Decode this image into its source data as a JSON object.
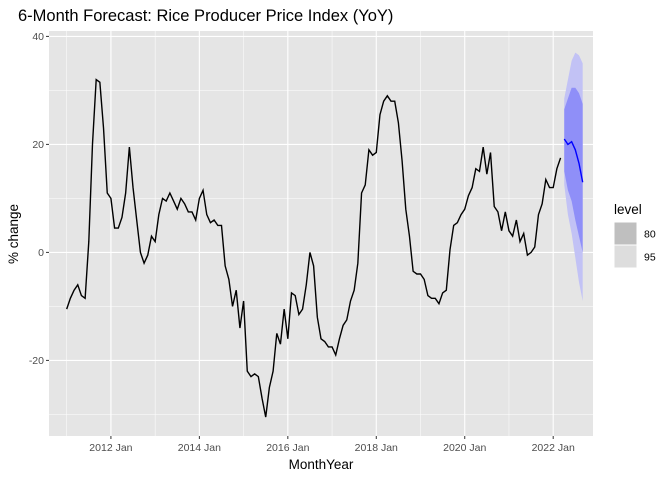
{
  "chart_data": {
    "type": "line",
    "title": "6-Month Forecast: Rice Producer Price Index (YoY)",
    "xlabel": "MonthYear",
    "ylabel": "% change",
    "xlim": [
      2010.6,
      2022.9
    ],
    "ylim": [
      -34,
      41
    ],
    "x_ticks": [
      {
        "value": 2012.0,
        "label": "2012 Jan"
      },
      {
        "value": 2014.0,
        "label": "2014 Jan"
      },
      {
        "value": 2016.0,
        "label": "2016 Jan"
      },
      {
        "value": 2018.0,
        "label": "2018 Jan"
      },
      {
        "value": 2020.0,
        "label": "2020 Jan"
      },
      {
        "value": 2022.0,
        "label": "2022 Jan"
      }
    ],
    "y_ticks": [
      {
        "value": -20,
        "label": "-20"
      },
      {
        "value": 0,
        "label": "0"
      },
      {
        "value": 20,
        "label": "20"
      },
      {
        "value": 40,
        "label": "40"
      }
    ],
    "grid": true,
    "legend_position": "right",
    "colors": {
      "panel": "#e5e5e5",
      "grid": "#ffffff",
      "history_line": "#000000",
      "forecast_line": "#0000ff",
      "band80": "#8f8ff8",
      "band95": "#c2c2f5",
      "legend80": "#bfbfbf",
      "legend95": "#dddddd"
    },
    "legend": {
      "title": "level",
      "items": [
        {
          "label": "80",
          "color": "#bfbfbf"
        },
        {
          "label": "95",
          "color": "#dddddd"
        }
      ]
    },
    "history": {
      "x": [
        2011.0,
        2011.083,
        2011.167,
        2011.25,
        2011.333,
        2011.417,
        2011.5,
        2011.583,
        2011.667,
        2011.75,
        2011.833,
        2011.917,
        2012.0,
        2012.083,
        2012.167,
        2012.25,
        2012.333,
        2012.417,
        2012.5,
        2012.583,
        2012.667,
        2012.75,
        2012.833,
        2012.917,
        2013.0,
        2013.083,
        2013.167,
        2013.25,
        2013.333,
        2013.417,
        2013.5,
        2013.583,
        2013.667,
        2013.75,
        2013.833,
        2013.917,
        2014.0,
        2014.083,
        2014.167,
        2014.25,
        2014.333,
        2014.417,
        2014.5,
        2014.583,
        2014.667,
        2014.75,
        2014.833,
        2014.917,
        2015.0,
        2015.083,
        2015.167,
        2015.25,
        2015.333,
        2015.417,
        2015.5,
        2015.583,
        2015.667,
        2015.75,
        2015.833,
        2015.917,
        2016.0,
        2016.083,
        2016.167,
        2016.25,
        2016.333,
        2016.417,
        2016.5,
        2016.583,
        2016.667,
        2016.75,
        2016.833,
        2016.917,
        2017.0,
        2017.083,
        2017.167,
        2017.25,
        2017.333,
        2017.417,
        2017.5,
        2017.583,
        2017.667,
        2017.75,
        2017.833,
        2017.917,
        2018.0,
        2018.083,
        2018.167,
        2018.25,
        2018.333,
        2018.417,
        2018.5,
        2018.583,
        2018.667,
        2018.75,
        2018.833,
        2018.917,
        2019.0,
        2019.083,
        2019.167,
        2019.25,
        2019.333,
        2019.417,
        2019.5,
        2019.583,
        2019.667,
        2019.75,
        2019.833,
        2019.917,
        2020.0,
        2020.083,
        2020.167,
        2020.25,
        2020.333,
        2020.417,
        2020.5,
        2020.583,
        2020.667,
        2020.75,
        2020.833,
        2020.917,
        2021.0,
        2021.083,
        2021.167,
        2021.25,
        2021.333,
        2021.417,
        2021.5,
        2021.583,
        2021.667,
        2021.75,
        2021.833,
        2021.917,
        2022.0,
        2022.083,
        2022.167
      ],
      "y": [
        -10.5,
        -8.5,
        -7.0,
        -6.0,
        -8.0,
        -8.5,
        2.0,
        20.0,
        32.0,
        31.5,
        23.0,
        11.0,
        10.0,
        4.5,
        4.5,
        6.5,
        11.0,
        19.5,
        12.0,
        6.0,
        0.0,
        -2.0,
        -0.5,
        3.0,
        2.0,
        7.0,
        10.0,
        9.5,
        11.0,
        9.5,
        8.0,
        10.0,
        9.0,
        7.5,
        7.5,
        6.0,
        10.0,
        11.5,
        7.0,
        5.5,
        6.0,
        5.0,
        5.0,
        -2.5,
        -5.0,
        -10.0,
        -7.0,
        -14.0,
        -9.0,
        -22.0,
        -23.0,
        -22.5,
        -23.0,
        -27.0,
        -30.5,
        -25.0,
        -22.0,
        -15.0,
        -17.0,
        -10.5,
        -16.0,
        -7.5,
        -8.0,
        -11.5,
        -10.5,
        -6.0,
        0.0,
        -2.5,
        -12.0,
        -16.0,
        -16.5,
        -17.5,
        -17.5,
        -19.0,
        -16.0,
        -13.5,
        -12.5,
        -9.0,
        -7.0,
        -2.0,
        11.0,
        12.5,
        19.0,
        18.0,
        18.5,
        25.5,
        28.0,
        29.0,
        28.0,
        28.0,
        24.0,
        17.0,
        8.0,
        3.0,
        -3.5,
        -4.0,
        -4.0,
        -5.0,
        -8.0,
        -8.5,
        -8.5,
        -9.5,
        -7.5,
        -7.0,
        0.5,
        5.0,
        5.5,
        7.0,
        8.0,
        10.5,
        12.0,
        15.5,
        15.0,
        19.5,
        14.5,
        18.5,
        8.5,
        7.5,
        4.0,
        7.5,
        4.0,
        3.0,
        6.0,
        2.0,
        3.5,
        -0.5,
        0.0,
        1.0,
        7.0,
        9.0,
        13.5,
        12.0,
        12.0,
        15.5,
        17.5
      ]
    },
    "forecast": {
      "x": [
        2022.25,
        2022.333,
        2022.417,
        2022.5,
        2022.583,
        2022.667
      ],
      "mean": [
        21.0,
        20.0,
        20.5,
        19.0,
        16.5,
        13.0
      ],
      "lo80": [
        15.0,
        11.5,
        9.5,
        6.0,
        3.0,
        0.0
      ],
      "hi80": [
        26.5,
        28.5,
        30.5,
        30.5,
        29.5,
        27.5
      ],
      "lo95": [
        12.5,
        7.0,
        3.5,
        -1.0,
        -5.5,
        -9.0
      ],
      "hi95": [
        28.5,
        32.0,
        35.5,
        37.0,
        36.5,
        35.0
      ]
    }
  }
}
